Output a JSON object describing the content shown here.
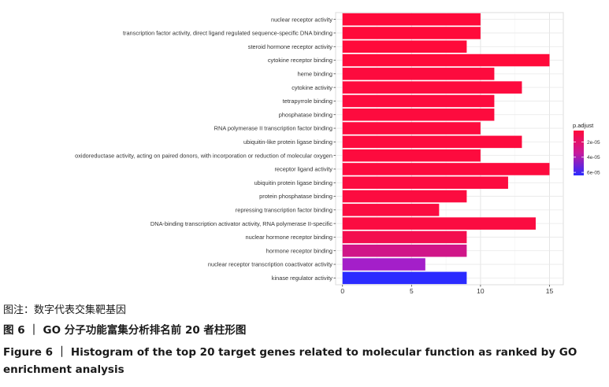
{
  "chart_data": {
    "type": "bar",
    "orientation": "horizontal",
    "categories": [
      "nuclear receptor activity",
      "transcription factor activity, direct ligand regulated sequence-specific DNA binding",
      "steroid hormone receptor activity",
      "cytokine receptor binding",
      "heme binding",
      "cytokine activity",
      "tetrapyrrole binding",
      "phosphatase binding",
      "RNA polymerase II transcription factor binding",
      "ubiquitin-like protein ligase binding",
      "oxidoreductase activity, acting on paired donors, with incorporation or reduction of molecular oxygen",
      "receptor ligand activity",
      "ubiquitin protein ligase binding",
      "protein phosphatase binding",
      "repressing transcription factor binding",
      "DNA-binding transcription activator activity, RNA polymerase II-specific",
      "nuclear hormone receptor binding",
      "hormone receptor binding",
      "nuclear receptor transcription coactivator activity",
      "kinase regulator activity"
    ],
    "values": [
      10,
      10,
      9,
      15,
      11,
      13,
      11,
      11,
      10,
      13,
      10,
      15,
      12,
      9,
      7,
      14,
      9,
      9,
      6,
      9
    ],
    "colors": [
      "#ff0a3a",
      "#ff0a3a",
      "#ff0a3a",
      "#ff0a3a",
      "#fd0b3e",
      "#fd0b3e",
      "#fd0b3e",
      "#fd0b3e",
      "#fd0b3e",
      "#fd0b3e",
      "#fd0b3e",
      "#fd0b3e",
      "#fc0c40",
      "#fc0c40",
      "#fb0c41",
      "#fb0c41",
      "#f30e4f",
      "#d01688",
      "#a41fc9",
      "#2b2bff"
    ],
    "xlim": [
      -0.5,
      16
    ],
    "xticks": [
      0,
      5,
      10,
      15
    ],
    "grid": true,
    "legend": {
      "title": "p.adjust",
      "ticks": [
        "2e-05",
        "4e-05",
        "6e-05"
      ],
      "gradient": [
        "#ff0a3a",
        "#c81a9c",
        "#2b2bff"
      ],
      "placement": "right"
    }
  },
  "caption": {
    "note": "图注：数字代表交集靶基因",
    "zh": "图 6 ｜ GO 分子功能富集分析排名前 20 者柱形图",
    "en": "Figure 6 ｜ Histogram of the top 20 target genes related to molecular function as ranked by GO enrichment analysis"
  }
}
